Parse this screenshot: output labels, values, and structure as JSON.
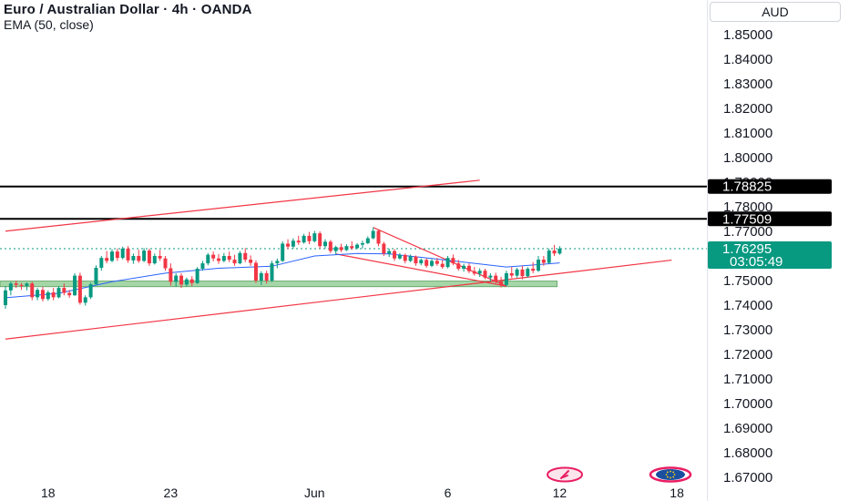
{
  "header": {
    "title": "Euro / Australian Dollar · 4h · OANDA",
    "indicator": "EMA (50, close)"
  },
  "currency_button": "AUD",
  "colors": {
    "bullish": "#089981",
    "bearish": "#f23645",
    "ema": "#2962ff",
    "trendline": "#f23645",
    "level_line": "#000000",
    "support_zone": "#a5d6a7",
    "price_badge": "#089981"
  },
  "icons": [
    "tv-logo-icon",
    "eu-flag-icon"
  ],
  "chart_data": {
    "type": "candlestick",
    "symbol": "EUR/AUD",
    "interval": "4h",
    "ylim": [
      1.665,
      1.864
    ],
    "yticks": [
      1.85,
      1.84,
      1.83,
      1.82,
      1.81,
      1.8,
      1.79,
      1.78,
      1.77,
      1.76,
      1.75,
      1.74,
      1.73,
      1.72,
      1.71,
      1.7,
      1.69,
      1.68,
      1.67
    ],
    "ytick_labels": [
      "1.85000",
      "1.84000",
      "1.83000",
      "1.82000",
      "1.81000",
      "1.80000",
      "1.79000",
      "1.78000",
      "1.77000",
      "1.76000",
      "1.75000",
      "1.74000",
      "1.73000",
      "1.72000",
      "1.71000",
      "1.70000",
      "1.69000",
      "1.68000",
      "1.67000"
    ],
    "xtick_labels": [
      {
        "label": "18",
        "bar": 8
      },
      {
        "label": "23",
        "bar": 31
      },
      {
        "label": "Jun",
        "bar": 58
      },
      {
        "label": "6",
        "bar": 83
      },
      {
        "label": "12",
        "bar": 104
      },
      {
        "label": "18",
        "bar": 126
      }
    ],
    "horizontal_levels": [
      {
        "price": 1.78825,
        "label": "1.78825"
      },
      {
        "price": 1.77509,
        "label": "1.77509"
      }
    ],
    "last_price": {
      "price": 1.76295,
      "label": "1.76295",
      "countdown": "03:05:49"
    },
    "support_zone": {
      "from_bar": 0,
      "to_bar": 103,
      "low": 1.7475,
      "high": 1.7498
    },
    "trendlines": [
      {
        "from": [
          0,
          1.7701
        ],
        "to": [
          89,
          1.7908
        ]
      },
      {
        "from": [
          0,
          1.7262
        ],
        "to": [
          125,
          1.7583
        ]
      },
      {
        "from": [
          69,
          1.7716
        ],
        "to": [
          94,
          1.7477
        ]
      },
      {
        "from": [
          62,
          1.7608
        ],
        "to": [
          94,
          1.7477
        ]
      }
    ],
    "candles": [
      [
        1.74,
        1.7478,
        1.7385,
        1.746
      ],
      [
        1.746,
        1.7495,
        1.744,
        1.7488
      ],
      [
        1.7488,
        1.75,
        1.747,
        1.7482
      ],
      [
        1.7482,
        1.749,
        1.7462,
        1.7478
      ],
      [
        1.7478,
        1.7492,
        1.746,
        1.7488
      ],
      [
        1.7488,
        1.7495,
        1.742,
        1.7432
      ],
      [
        1.7432,
        1.747,
        1.742,
        1.7462
      ],
      [
        1.7462,
        1.7474,
        1.7415,
        1.7425
      ],
      [
        1.7425,
        1.746,
        1.7418,
        1.7452
      ],
      [
        1.7452,
        1.747,
        1.742,
        1.7432
      ],
      [
        1.7432,
        1.7478,
        1.7428,
        1.747
      ],
      [
        1.747,
        1.7488,
        1.744,
        1.745
      ],
      [
        1.745,
        1.7462,
        1.743,
        1.744
      ],
      [
        1.744,
        1.753,
        1.7438,
        1.752
      ],
      [
        1.752,
        1.7532,
        1.7402,
        1.741
      ],
      [
        1.741,
        1.744,
        1.7398,
        1.7432
      ],
      [
        1.7432,
        1.7492,
        1.7425,
        1.7485
      ],
      [
        1.7485,
        1.7562,
        1.748,
        1.7552
      ],
      [
        1.7552,
        1.76,
        1.754,
        1.7592
      ],
      [
        1.7592,
        1.762,
        1.757,
        1.758
      ],
      [
        1.758,
        1.7628,
        1.7575,
        1.7618
      ],
      [
        1.7618,
        1.763,
        1.758,
        1.7592
      ],
      [
        1.7592,
        1.7638,
        1.7586,
        1.763
      ],
      [
        1.763,
        1.764,
        1.7572,
        1.7582
      ],
      [
        1.7582,
        1.761,
        1.7568,
        1.76
      ],
      [
        1.76,
        1.7625,
        1.7572,
        1.758
      ],
      [
        1.758,
        1.7632,
        1.7575,
        1.7622
      ],
      [
        1.7622,
        1.763,
        1.756,
        1.757
      ],
      [
        1.757,
        1.761,
        1.7565,
        1.76
      ],
      [
        1.76,
        1.7625,
        1.758,
        1.759
      ],
      [
        1.759,
        1.76,
        1.754,
        1.755
      ],
      [
        1.755,
        1.757,
        1.748,
        1.7495
      ],
      [
        1.7495,
        1.753,
        1.7475,
        1.752
      ],
      [
        1.752,
        1.753,
        1.747,
        1.7484
      ],
      [
        1.7484,
        1.7512,
        1.7476,
        1.7505
      ],
      [
        1.7505,
        1.7518,
        1.7478,
        1.749
      ],
      [
        1.749,
        1.7555,
        1.7486,
        1.7548
      ],
      [
        1.7548,
        1.758,
        1.754,
        1.757
      ],
      [
        1.757,
        1.7612,
        1.7562,
        1.7605
      ],
      [
        1.7605,
        1.7618,
        1.7578,
        1.759
      ],
      [
        1.759,
        1.7608,
        1.7568,
        1.758
      ],
      [
        1.758,
        1.7612,
        1.7574,
        1.76
      ],
      [
        1.76,
        1.7618,
        1.7575,
        1.7585
      ],
      [
        1.7585,
        1.7605,
        1.756,
        1.757
      ],
      [
        1.757,
        1.762,
        1.7566,
        1.7612
      ],
      [
        1.7612,
        1.7632,
        1.7575,
        1.7585
      ],
      [
        1.7585,
        1.7602,
        1.756,
        1.7572
      ],
      [
        1.7572,
        1.7582,
        1.749,
        1.75
      ],
      [
        1.75,
        1.7538,
        1.7482,
        1.753
      ],
      [
        1.753,
        1.754,
        1.7488,
        1.75
      ],
      [
        1.75,
        1.758,
        1.7494,
        1.757
      ],
      [
        1.757,
        1.759,
        1.755,
        1.758
      ],
      [
        1.758,
        1.766,
        1.7575,
        1.765
      ],
      [
        1.765,
        1.7668,
        1.7628,
        1.7638
      ],
      [
        1.7638,
        1.7672,
        1.763,
        1.7662
      ],
      [
        1.7662,
        1.7682,
        1.7645,
        1.7655
      ],
      [
        1.7655,
        1.769,
        1.765,
        1.7682
      ],
      [
        1.7682,
        1.7698,
        1.7648,
        1.766
      ],
      [
        1.766,
        1.7702,
        1.7655,
        1.7692
      ],
      [
        1.7692,
        1.77,
        1.763,
        1.764
      ],
      [
        1.764,
        1.7668,
        1.763,
        1.7658
      ],
      [
        1.7658,
        1.7665,
        1.7612,
        1.762
      ],
      [
        1.762,
        1.7642,
        1.7606,
        1.7636
      ],
      [
        1.7636,
        1.765,
        1.7616,
        1.7624
      ],
      [
        1.7624,
        1.7648,
        1.762,
        1.764
      ],
      [
        1.764,
        1.766,
        1.7625,
        1.7632
      ],
      [
        1.7632,
        1.7652,
        1.7628,
        1.7646
      ],
      [
        1.7646,
        1.7662,
        1.763,
        1.7652
      ],
      [
        1.7652,
        1.768,
        1.7648,
        1.7672
      ],
      [
        1.7672,
        1.7716,
        1.7668,
        1.7702
      ],
      [
        1.7702,
        1.7708,
        1.764,
        1.765
      ],
      [
        1.765,
        1.7658,
        1.76,
        1.761
      ],
      [
        1.761,
        1.763,
        1.7596,
        1.762
      ],
      [
        1.762,
        1.7628,
        1.758,
        1.759
      ],
      [
        1.759,
        1.7612,
        1.7585,
        1.7604
      ],
      [
        1.7604,
        1.761,
        1.757,
        1.758
      ],
      [
        1.758,
        1.7606,
        1.7575,
        1.7598
      ],
      [
        1.7598,
        1.7602,
        1.756,
        1.757
      ],
      [
        1.757,
        1.759,
        1.7562,
        1.7584
      ],
      [
        1.7584,
        1.759,
        1.7552,
        1.756
      ],
      [
        1.756,
        1.7588,
        1.7554,
        1.758
      ],
      [
        1.758,
        1.7592,
        1.756,
        1.7568
      ],
      [
        1.7568,
        1.7584,
        1.7548,
        1.7555
      ],
      [
        1.7555,
        1.76,
        1.755,
        1.7592
      ],
      [
        1.7592,
        1.7606,
        1.7562,
        1.757
      ],
      [
        1.757,
        1.7584,
        1.754,
        1.7548
      ],
      [
        1.7548,
        1.7568,
        1.7536,
        1.756
      ],
      [
        1.756,
        1.757,
        1.753,
        1.7538
      ],
      [
        1.7538,
        1.7555,
        1.752,
        1.7528
      ],
      [
        1.7528,
        1.755,
        1.7515,
        1.754
      ],
      [
        1.754,
        1.7548,
        1.7505,
        1.7512
      ],
      [
        1.7512,
        1.753,
        1.7496,
        1.752
      ],
      [
        1.752,
        1.7532,
        1.7488,
        1.7496
      ],
      [
        1.7496,
        1.7515,
        1.7472,
        1.7482
      ],
      [
        1.7482,
        1.754,
        1.7478,
        1.753
      ],
      [
        1.753,
        1.7555,
        1.751,
        1.752
      ],
      [
        1.752,
        1.7552,
        1.7512,
        1.7545
      ],
      [
        1.7545,
        1.756,
        1.7505,
        1.7518
      ],
      [
        1.7518,
        1.7555,
        1.7512,
        1.7548
      ],
      [
        1.7548,
        1.7575,
        1.753,
        1.754
      ],
      [
        1.754,
        1.76,
        1.7535,
        1.7585
      ],
      [
        1.7585,
        1.76,
        1.756,
        1.7572
      ],
      [
        1.7572,
        1.763,
        1.7568,
        1.7622
      ],
      [
        1.7622,
        1.7645,
        1.76,
        1.761
      ],
      [
        1.761,
        1.764,
        1.7605,
        1.763
      ]
    ],
    "ema": [
      [
        0,
        1.743
      ],
      [
        10,
        1.7448
      ],
      [
        20,
        1.7495
      ],
      [
        30,
        1.753
      ],
      [
        40,
        1.755
      ],
      [
        50,
        1.7558
      ],
      [
        58,
        1.76
      ],
      [
        66,
        1.761
      ],
      [
        72,
        1.7608
      ],
      [
        80,
        1.759
      ],
      [
        88,
        1.757
      ],
      [
        94,
        1.7555
      ],
      [
        100,
        1.7565
      ],
      [
        104,
        1.7572
      ]
    ]
  }
}
